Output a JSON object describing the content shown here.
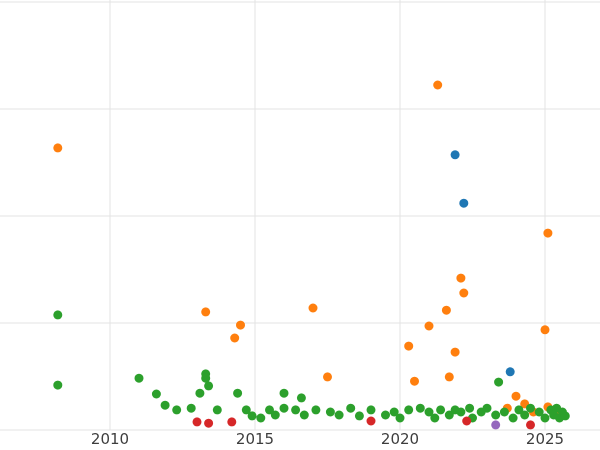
{
  "chart_data": {
    "type": "scatter",
    "title": "",
    "xlabel": "",
    "ylabel": "",
    "xlim": [
      2006.2,
      2026.9
    ],
    "ylim": [
      0,
      100
    ],
    "grid": true,
    "legend": "none",
    "background_color": "#ffffff",
    "gridline_color": "#e3e3e3",
    "tick_label_color": "#3d3d3d",
    "x_ticks": [
      {
        "value": 2010,
        "label": "2010"
      },
      {
        "value": 2015,
        "label": "2015"
      },
      {
        "value": 2020,
        "label": "2020"
      },
      {
        "value": 2025,
        "label": "2025"
      }
    ],
    "y_gridlines": [
      0,
      25,
      50,
      75,
      100
    ],
    "point_radius": 4.5,
    "series": [
      {
        "name": "orange-series",
        "color": "#ff7f0e",
        "points": [
          [
            2008.2,
            65.9
          ],
          [
            2021.3,
            80.6
          ],
          [
            2025.1,
            46.0
          ],
          [
            2022.1,
            35.5
          ],
          [
            2022.2,
            32.0
          ],
          [
            2017.0,
            28.5
          ],
          [
            2013.3,
            27.6
          ],
          [
            2014.5,
            24.5
          ],
          [
            2021.0,
            24.3
          ],
          [
            2021.6,
            28.0
          ],
          [
            2025.0,
            23.4
          ],
          [
            2020.3,
            19.6
          ],
          [
            2021.9,
            18.2
          ],
          [
            2014.3,
            21.5
          ],
          [
            2017.5,
            12.4
          ],
          [
            2020.5,
            11.4
          ],
          [
            2021.7,
            12.4
          ],
          [
            2024.0,
            7.9
          ],
          [
            2024.3,
            6.1
          ],
          [
            2024.6,
            4.2
          ],
          [
            2025.1,
            5.4
          ],
          [
            2023.7,
            5.1
          ],
          [
            2025.4,
            4.7
          ]
        ]
      },
      {
        "name": "green-series",
        "color": "#2ca02c",
        "points": [
          [
            2008.2,
            26.9
          ],
          [
            2008.2,
            10.5
          ],
          [
            2011.0,
            12.1
          ],
          [
            2011.6,
            8.4
          ],
          [
            2011.9,
            5.8
          ],
          [
            2012.3,
            4.7
          ],
          [
            2012.8,
            5.1
          ],
          [
            2013.1,
            8.6
          ],
          [
            2013.3,
            13.1
          ],
          [
            2013.3,
            12.1
          ],
          [
            2013.4,
            10.3
          ],
          [
            2013.7,
            4.7
          ],
          [
            2014.4,
            8.6
          ],
          [
            2014.7,
            4.7
          ],
          [
            2014.9,
            3.3
          ],
          [
            2015.2,
            2.8
          ],
          [
            2015.5,
            4.7
          ],
          [
            2015.7,
            3.5
          ],
          [
            2016.0,
            8.6
          ],
          [
            2016.0,
            5.1
          ],
          [
            2016.4,
            4.7
          ],
          [
            2016.6,
            7.5
          ],
          [
            2016.7,
            3.5
          ],
          [
            2017.1,
            4.7
          ],
          [
            2017.6,
            4.2
          ],
          [
            2017.9,
            3.5
          ],
          [
            2018.3,
            5.1
          ],
          [
            2018.6,
            3.3
          ],
          [
            2019.0,
            4.7
          ],
          [
            2019.5,
            3.5
          ],
          [
            2019.8,
            4.2
          ],
          [
            2020.0,
            2.8
          ],
          [
            2020.3,
            4.7
          ],
          [
            2020.7,
            5.1
          ],
          [
            2021.0,
            4.2
          ],
          [
            2021.2,
            2.8
          ],
          [
            2021.4,
            4.7
          ],
          [
            2021.7,
            3.5
          ],
          [
            2021.9,
            4.7
          ],
          [
            2022.1,
            4.2
          ],
          [
            2022.4,
            5.1
          ],
          [
            2022.5,
            2.8
          ],
          [
            2022.8,
            4.2
          ],
          [
            2023.0,
            5.1
          ],
          [
            2023.3,
            3.5
          ],
          [
            2023.4,
            11.2
          ],
          [
            2023.6,
            4.2
          ],
          [
            2023.9,
            2.8
          ],
          [
            2024.1,
            4.7
          ],
          [
            2024.3,
            3.5
          ],
          [
            2024.5,
            5.1
          ],
          [
            2024.8,
            4.2
          ],
          [
            2025.0,
            2.8
          ],
          [
            2025.2,
            4.7
          ],
          [
            2025.3,
            3.5
          ],
          [
            2025.4,
            5.1
          ],
          [
            2025.5,
            2.8
          ],
          [
            2025.6,
            4.2
          ],
          [
            2025.7,
            3.3
          ]
        ]
      },
      {
        "name": "blue-series",
        "color": "#1f77b4",
        "points": [
          [
            2021.9,
            64.3
          ],
          [
            2022.2,
            53.0
          ],
          [
            2023.8,
            13.6
          ]
        ]
      },
      {
        "name": "red-series",
        "color": "#d62728",
        "points": [
          [
            2013.0,
            1.9
          ],
          [
            2013.4,
            1.6
          ],
          [
            2014.2,
            1.9
          ],
          [
            2019.0,
            2.1
          ],
          [
            2022.3,
            2.1
          ],
          [
            2024.5,
            1.2
          ]
        ]
      },
      {
        "name": "purple-series",
        "color": "#9467bd",
        "points": [
          [
            2023.3,
            1.2
          ]
        ]
      }
    ]
  }
}
